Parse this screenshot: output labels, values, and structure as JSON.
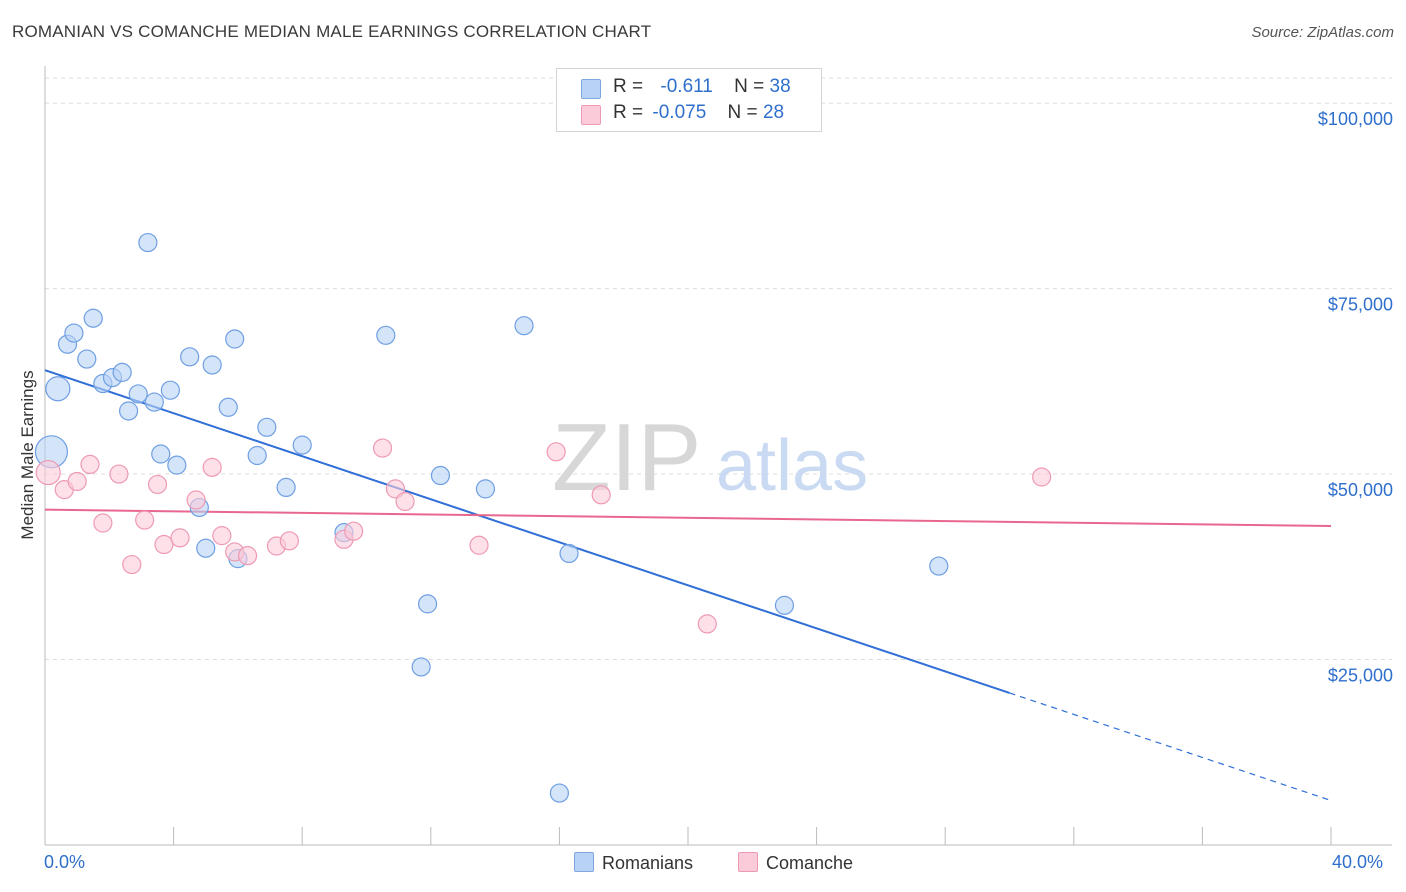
{
  "title": "ROMANIAN VS COMANCHE MEDIAN MALE EARNINGS CORRELATION CHART",
  "source": "Source: ZipAtlas.com",
  "watermark": {
    "zip": "ZIP",
    "atlas": "atlas"
  },
  "legend": {
    "rows": [
      {
        "r_label": "R =",
        "r_value": "-0.611",
        "n_label": "N =",
        "n_value": "38",
        "color": "#b8d2f5",
        "border": "#7fa8e0"
      },
      {
        "r_label": "R =",
        "r_value": "-0.075",
        "n_label": "N =",
        "n_value": "28",
        "color": "#fbcbd9",
        "border": "#ee9ab4"
      }
    ]
  },
  "bottom_legend": [
    {
      "label": "Romanians",
      "color": "#b8d2f5"
    },
    {
      "label": "Comanche",
      "color": "#fbcbd9"
    }
  ],
  "chart_data": {
    "type": "scatter",
    "title": "ROMANIAN VS COMANCHE MEDIAN MALE EARNINGS CORRELATION CHART",
    "xlabel": "",
    "ylabel": "Median Male Earnings",
    "xlim": [
      0,
      40
    ],
    "ylim": [
      0,
      105000
    ],
    "x_tick_labels": [
      {
        "value": 0,
        "label": "0.0%"
      },
      {
        "value": 40,
        "label": "40.0%"
      }
    ],
    "y_ticks": [
      {
        "value": 25000,
        "label": "$25,000"
      },
      {
        "value": 50000,
        "label": "$50,000"
      },
      {
        "value": 75000,
        "label": "$75,000"
      },
      {
        "value": 100000,
        "label": "$100,000"
      }
    ],
    "series": [
      {
        "name": "Romanians",
        "color": "#6f9fe3",
        "fill": "#b8d2f5",
        "r": -0.611,
        "n": 38,
        "trend": {
          "x0": 0,
          "y0": 64000,
          "x1": 30,
          "y1": 20500,
          "dash_to_x": 40,
          "dash_to_y": 6000,
          "color": "#2f6fd6"
        },
        "points": [
          [
            0.2,
            53000,
            16
          ],
          [
            0.4,
            61500,
            12
          ],
          [
            0.7,
            67500,
            9
          ],
          [
            0.9,
            69000,
            9
          ],
          [
            1.5,
            71000,
            9
          ],
          [
            1.3,
            65500,
            9
          ],
          [
            1.8,
            62200,
            9
          ],
          [
            2.1,
            63000,
            9
          ],
          [
            2.4,
            63700,
            9
          ],
          [
            2.6,
            58500,
            9
          ],
          [
            2.9,
            60800,
            9
          ],
          [
            3.2,
            81200,
            9
          ],
          [
            3.4,
            59700,
            9
          ],
          [
            3.6,
            52700,
            9
          ],
          [
            3.9,
            61300,
            9
          ],
          [
            4.1,
            51200,
            9
          ],
          [
            4.5,
            65800,
            9
          ],
          [
            4.8,
            45500,
            9
          ],
          [
            5.0,
            40000,
            9
          ],
          [
            5.2,
            64700,
            9
          ],
          [
            5.7,
            59000,
            9
          ],
          [
            5.9,
            68200,
            9
          ],
          [
            6.0,
            38600,
            9
          ],
          [
            6.6,
            52500,
            9
          ],
          [
            6.9,
            56300,
            9
          ],
          [
            7.5,
            48200,
            9
          ],
          [
            8.0,
            53900,
            9
          ],
          [
            9.3,
            42100,
            9
          ],
          [
            10.6,
            68700,
            9
          ],
          [
            11.7,
            24000,
            9
          ],
          [
            11.9,
            32500,
            9
          ],
          [
            12.3,
            49800,
            9
          ],
          [
            13.7,
            48000,
            9
          ],
          [
            14.9,
            70000,
            9
          ],
          [
            16.0,
            7000,
            9
          ],
          [
            16.3,
            39300,
            9
          ],
          [
            23.0,
            32300,
            9
          ],
          [
            27.8,
            37600,
            9
          ]
        ]
      },
      {
        "name": "Comanche",
        "color": "#ee9ab4",
        "fill": "#fbcbd9",
        "r": -0.075,
        "n": 28,
        "trend": {
          "x0": 0,
          "y0": 45200,
          "x1": 40,
          "y1": 43000,
          "color": "#e8678f"
        },
        "points": [
          [
            0.1,
            50200,
            12
          ],
          [
            0.6,
            47900,
            9
          ],
          [
            1.0,
            49000,
            9
          ],
          [
            1.4,
            51300,
            9
          ],
          [
            1.8,
            43400,
            9
          ],
          [
            2.3,
            50000,
            9
          ],
          [
            2.7,
            37800,
            9
          ],
          [
            3.1,
            43800,
            9
          ],
          [
            3.5,
            48600,
            9
          ],
          [
            3.7,
            40500,
            9
          ],
          [
            4.2,
            41400,
            9
          ],
          [
            4.7,
            46500,
            9
          ],
          [
            5.2,
            50900,
            9
          ],
          [
            5.5,
            41700,
            9
          ],
          [
            5.9,
            39500,
            9
          ],
          [
            6.3,
            39000,
            9
          ],
          [
            7.2,
            40300,
            9
          ],
          [
            7.6,
            41000,
            9
          ],
          [
            9.3,
            41200,
            9
          ],
          [
            9.6,
            42300,
            9
          ],
          [
            10.5,
            53500,
            9
          ],
          [
            10.9,
            48000,
            9
          ],
          [
            11.2,
            46300,
            9
          ],
          [
            13.5,
            40400,
            9
          ],
          [
            15.9,
            53000,
            9
          ],
          [
            17.3,
            47200,
            9
          ],
          [
            20.6,
            29800,
            9
          ],
          [
            31.0,
            49600,
            9
          ]
        ]
      }
    ]
  }
}
